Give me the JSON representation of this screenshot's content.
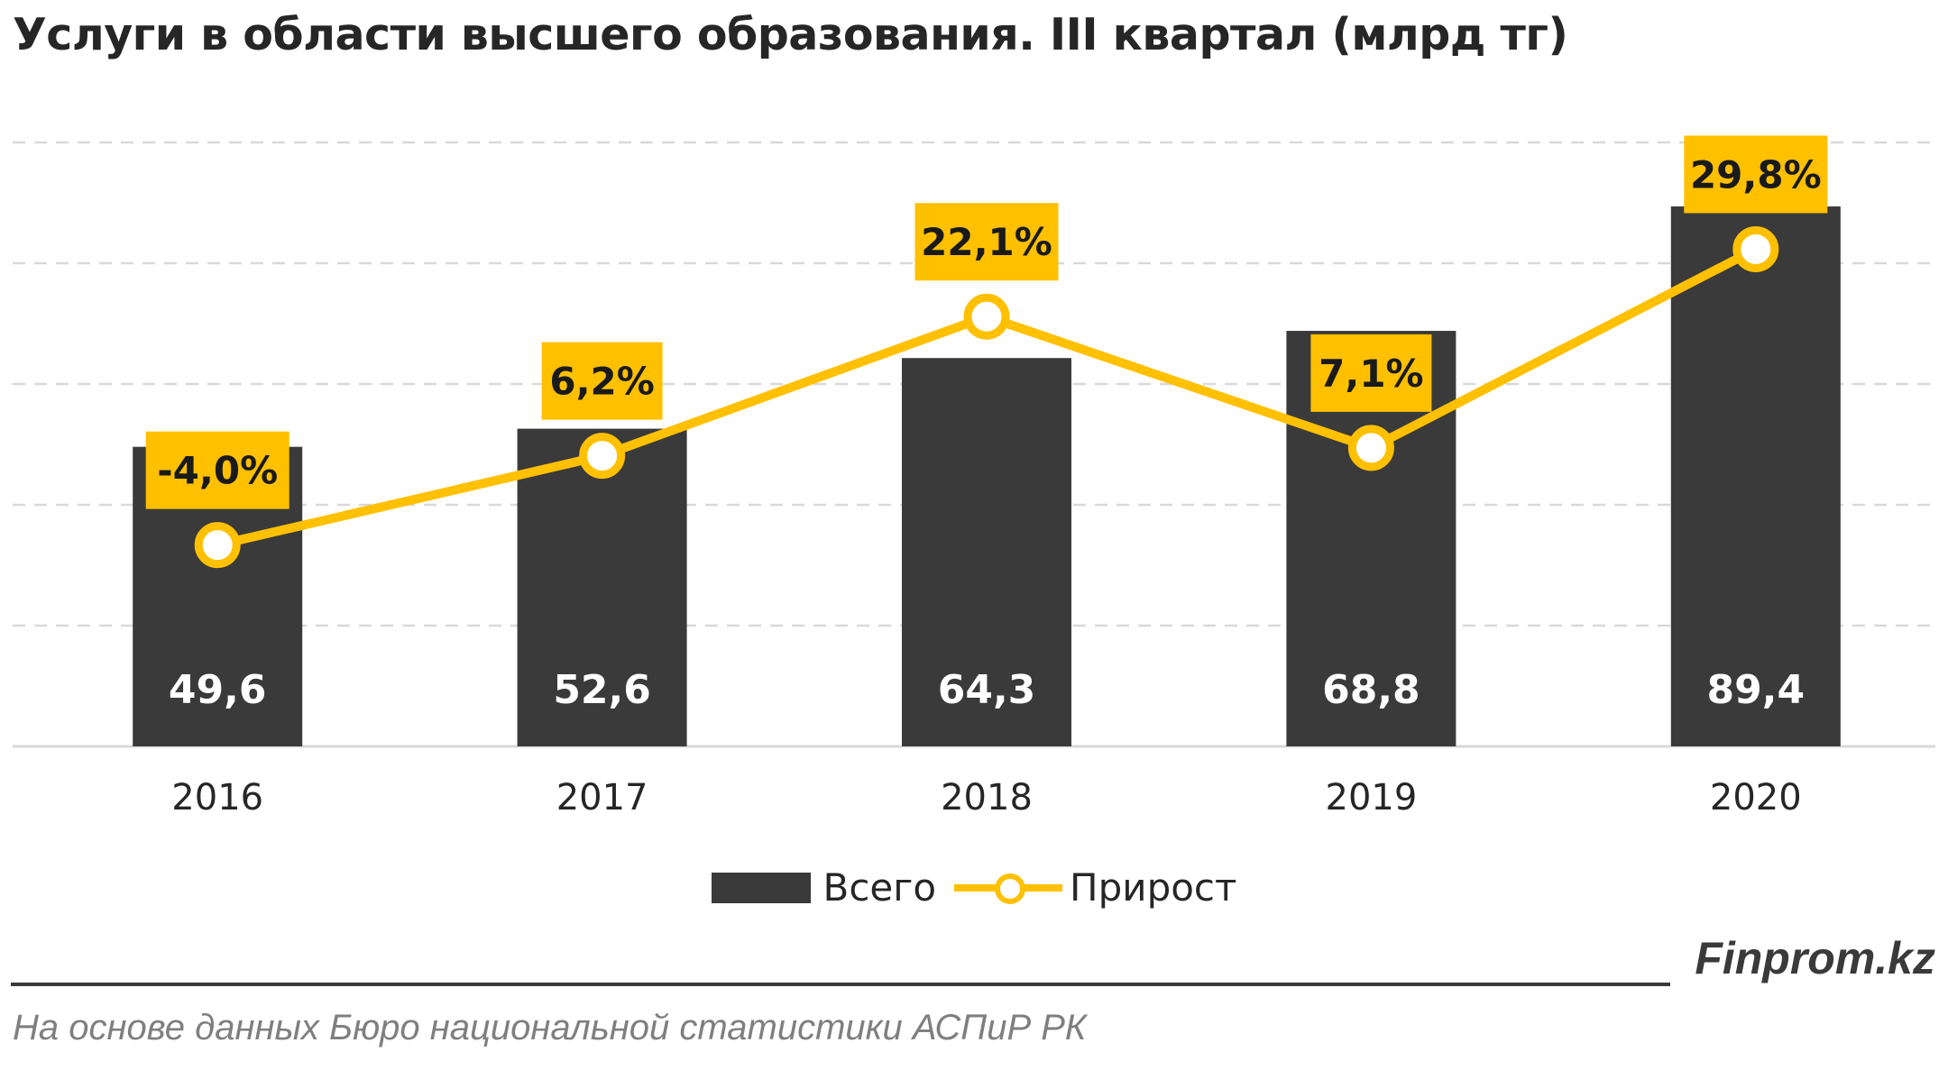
{
  "title": "Услуги в области высшего образования. III квартал (млрд тг)",
  "brand": "Finprom.kz",
  "source": "На основе данных Бюро национальной статистики АСПиР РК",
  "colors": {
    "bar": "#3a3a3a",
    "line": "#ffc000",
    "label_box": "#ffc000",
    "grid": "#d9d9d9"
  },
  "chart_data": {
    "type": "bar",
    "categories": [
      "2016",
      "2017",
      "2018",
      "2019",
      "2020"
    ],
    "series": [
      {
        "name": "Всего",
        "type": "bar",
        "values": [
          49.6,
          52.6,
          64.3,
          68.8,
          89.4
        ],
        "labels": [
          "49,6",
          "52,6",
          "64,3",
          "68,8",
          "89,4"
        ]
      },
      {
        "name": "Прирост",
        "type": "line",
        "values": [
          -4.0,
          6.2,
          22.1,
          7.1,
          29.8
        ],
        "labels": [
          "-4,0%",
          "6,2%",
          "22,1%",
          "7,1%",
          "29,8%"
        ]
      }
    ],
    "ylim": [
      0,
      100
    ],
    "y2lim": [
      -27,
      42
    ],
    "grid": true,
    "legend": "bottom"
  }
}
